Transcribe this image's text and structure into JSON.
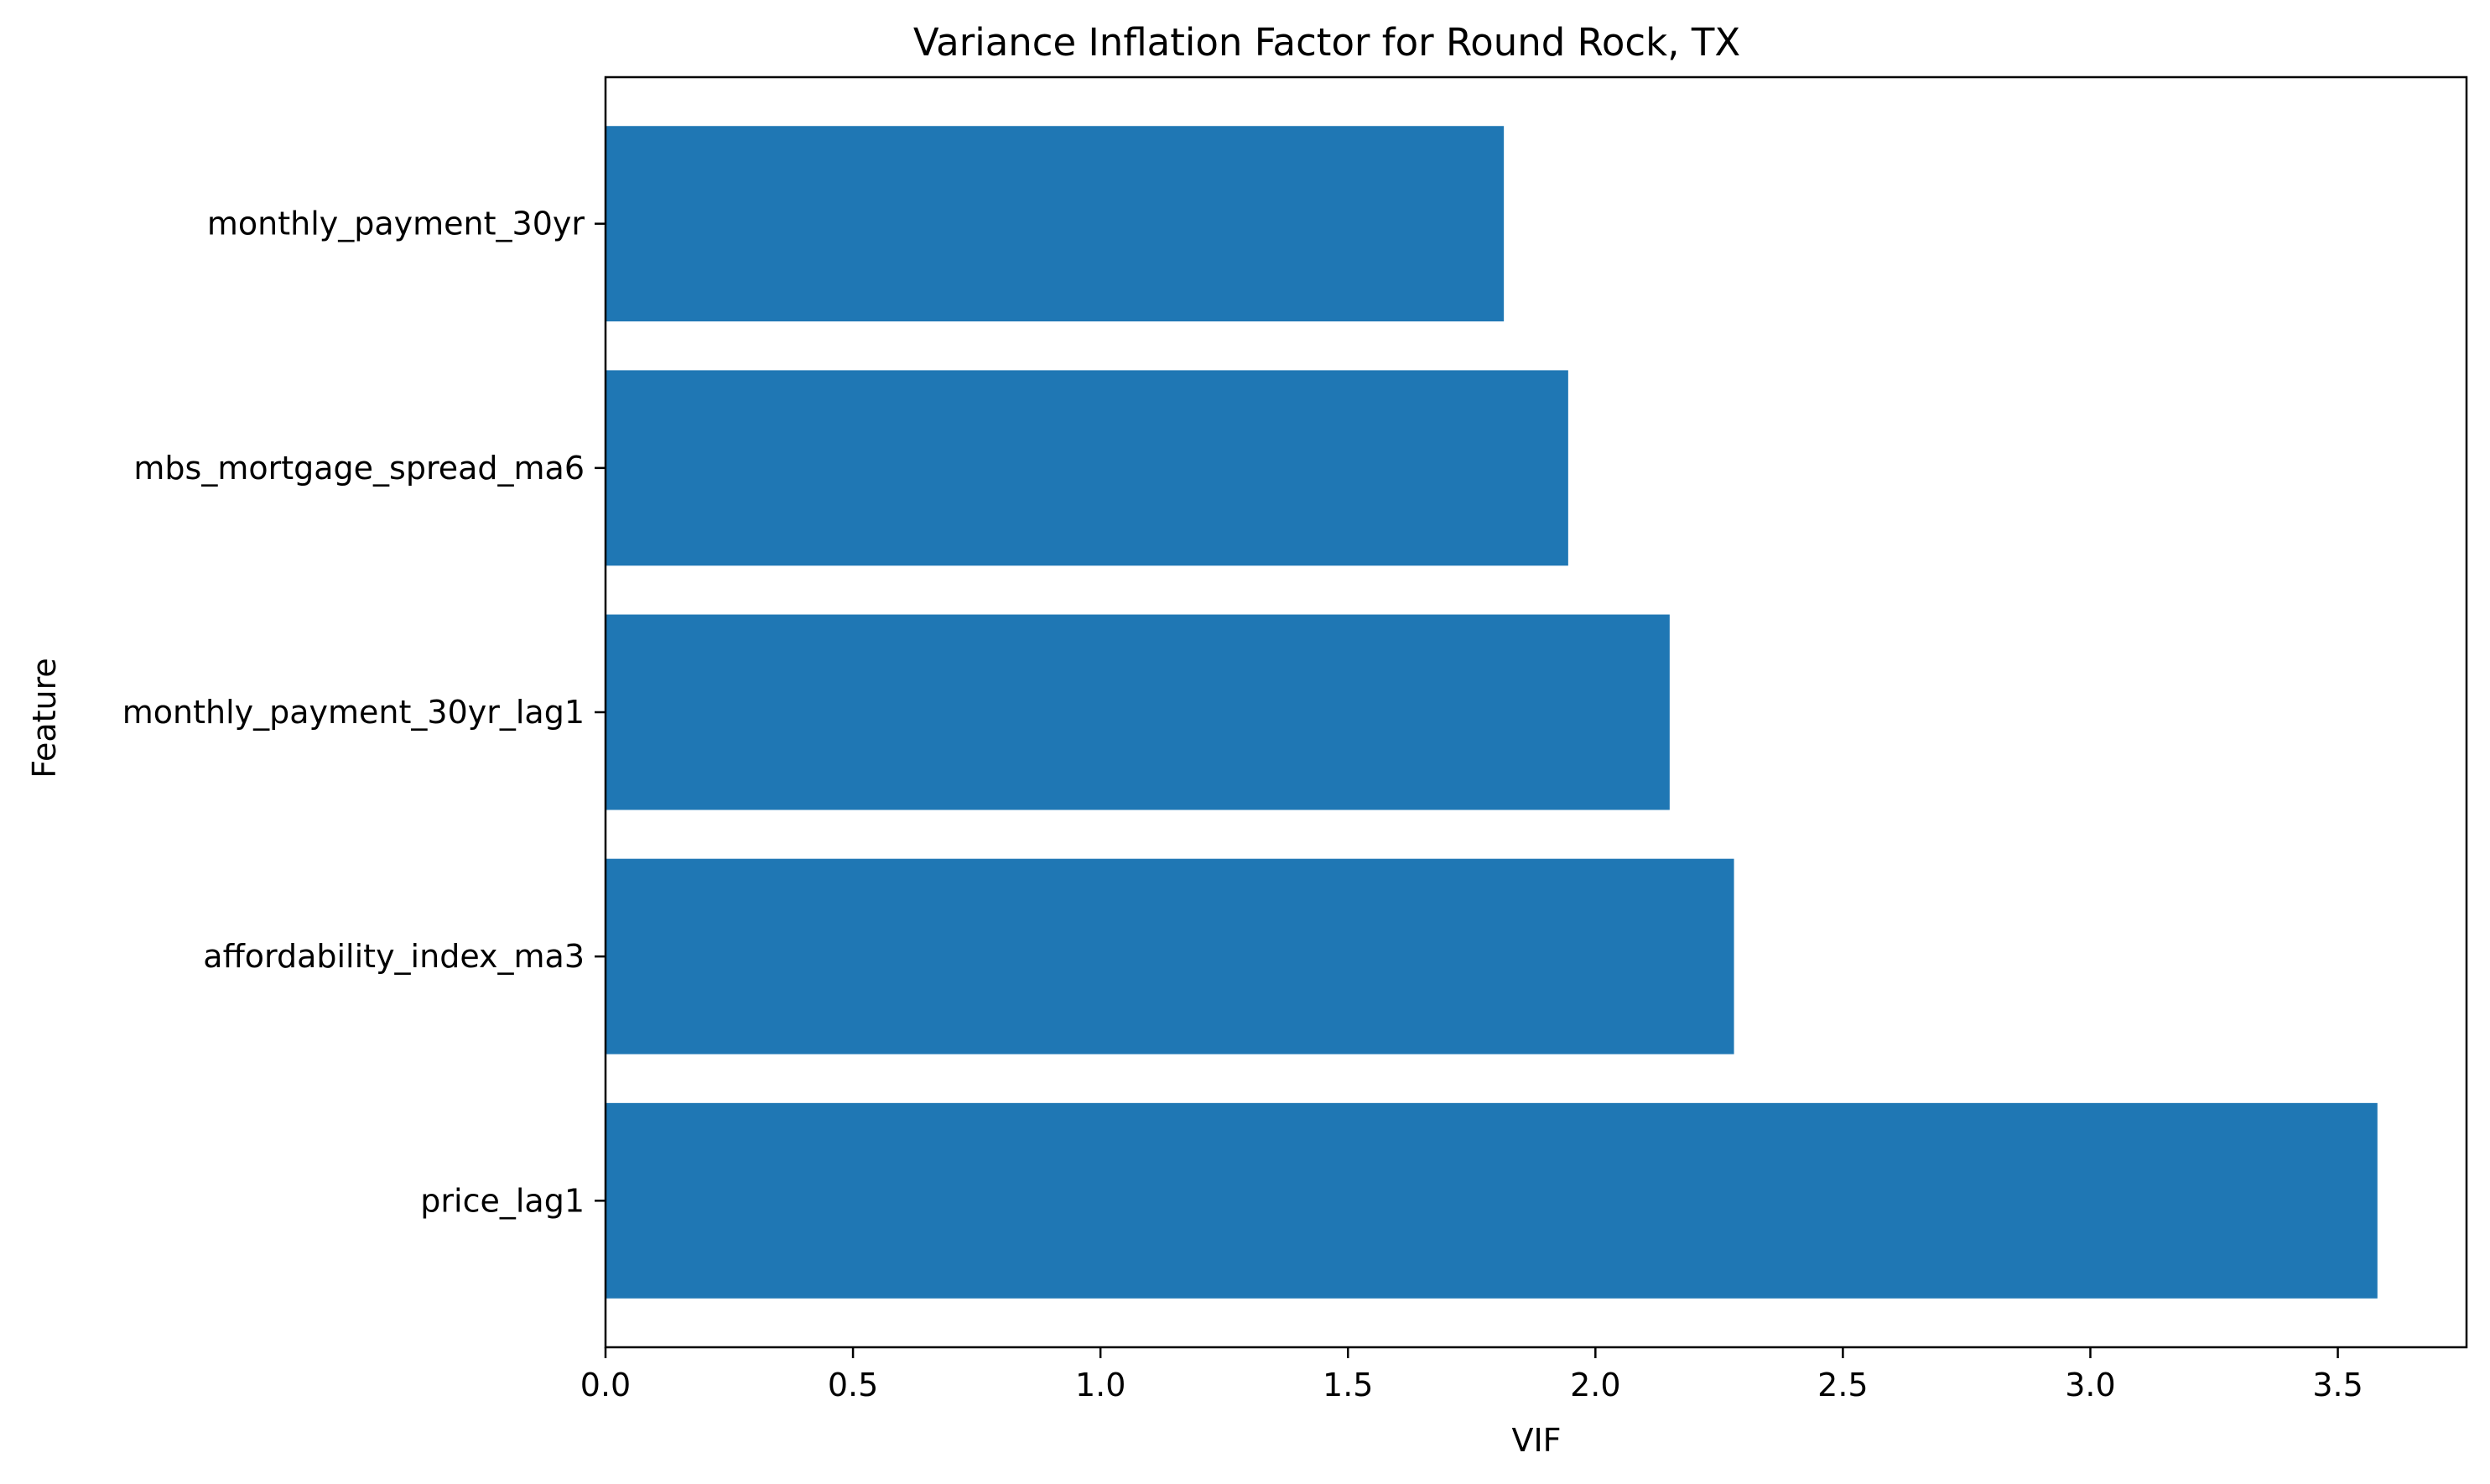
{
  "chart_data": {
    "type": "bar",
    "orientation": "horizontal",
    "title": "Variance Inflation Factor for Round Rock, TX",
    "xlabel": "VIF",
    "ylabel": "Feature",
    "categories": [
      "price_lag1",
      "affordability_index_ma3",
      "monthly_payment_30yr_lag1",
      "mbs_mortgage_spread_ma6",
      "monthly_payment_30yr"
    ],
    "values": [
      3.58,
      2.28,
      2.15,
      1.945,
      1.815
    ],
    "xlim": [
      0,
      3.76
    ],
    "xticks": [
      "0.0",
      "0.5",
      "1.0",
      "1.5",
      "2.0",
      "2.5",
      "3.0",
      "3.5"
    ],
    "xtick_values": [
      0,
      0.5,
      1.0,
      1.5,
      2.0,
      2.5,
      3.0,
      3.5
    ],
    "bar_color": "#1f77b4",
    "grid": false,
    "legend": "none"
  }
}
